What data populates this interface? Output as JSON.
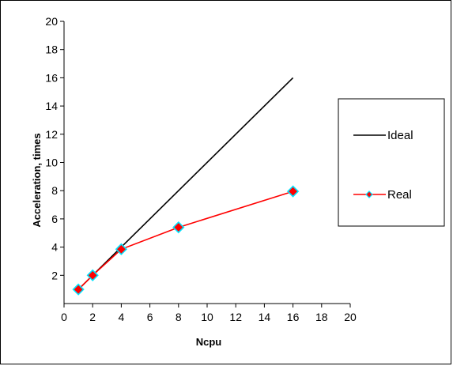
{
  "chart_data": {
    "type": "line",
    "xlabel": "Ncpu",
    "ylabel": "Acceleration, times",
    "xlim": [
      0,
      20
    ],
    "ylim": [
      0,
      20
    ],
    "x_ticks": [
      0,
      2,
      4,
      6,
      8,
      10,
      12,
      14,
      16,
      18,
      20
    ],
    "y_ticks": [
      2,
      4,
      6,
      8,
      10,
      12,
      14,
      16,
      18,
      20
    ],
    "grid": false,
    "legend_position": "right",
    "series": [
      {
        "name": "Ideal",
        "color": "#000000",
        "marker": "none",
        "points": [
          {
            "x": 1,
            "y": 1
          },
          {
            "x": 16,
            "y": 16
          }
        ]
      },
      {
        "name": "Real",
        "color": "#ff0000",
        "marker": "diamond",
        "marker_fill": "#ff0000",
        "marker_edge": "#00e5ff",
        "points": [
          {
            "x": 1,
            "y": 1
          },
          {
            "x": 2,
            "y": 2
          },
          {
            "x": 4,
            "y": 3.85
          },
          {
            "x": 8,
            "y": 5.4
          },
          {
            "x": 16,
            "y": 7.95
          }
        ]
      }
    ]
  }
}
